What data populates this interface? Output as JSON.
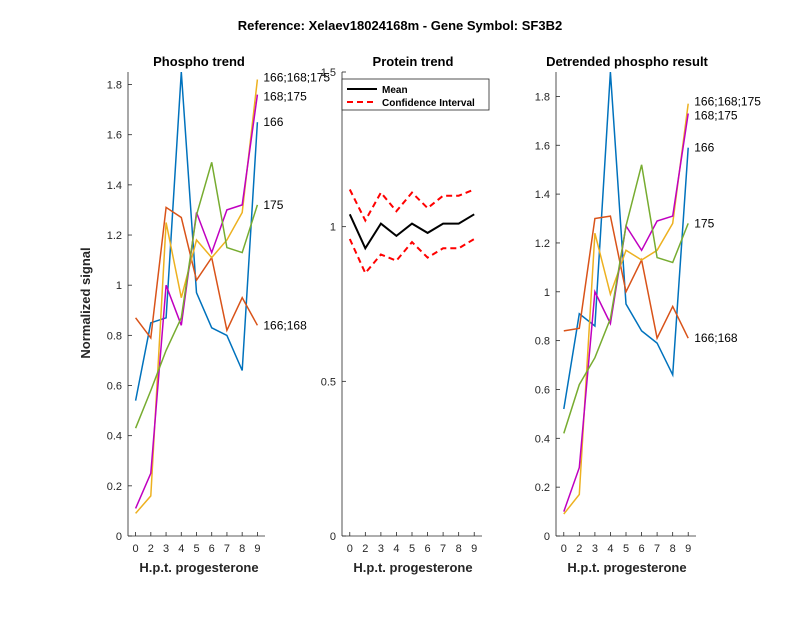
{
  "suptitle": "Reference:  Xelaev18024168m - Gene Symbol:  SF3B2",
  "colors": {
    "blue": "#0072BD",
    "orange": "#D95319",
    "yellow": "#EDB120",
    "purple": "#C000C0",
    "green": "#77AC30",
    "mean": "#000000",
    "ci": "#FF0000"
  },
  "chart_data": [
    {
      "type": "line",
      "title": "Phospho trend",
      "xlabel": "H.p.t. progesterone",
      "ylabel": "Normalized signal",
      "categories": [
        "0",
        "2",
        "3",
        "4",
        "5",
        "6",
        "7",
        "8",
        "9"
      ],
      "ylim": [
        0,
        1.85
      ],
      "yticks": [
        "0",
        "0.2",
        "0.4",
        "0.6",
        "0.8",
        "1",
        "1.2",
        "1.4",
        "1.6",
        "1.8"
      ],
      "ytick_values": [
        0,
        0.2,
        0.4,
        0.6,
        0.8,
        1,
        1.2,
        1.4,
        1.6,
        1.8
      ],
      "series": [
        {
          "name": "166",
          "color": "blue",
          "label": "166",
          "values": [
            0.54,
            0.85,
            0.87,
            1.85,
            0.97,
            0.83,
            0.8,
            0.66,
            1.65
          ]
        },
        {
          "name": "166;168",
          "color": "orange",
          "label": "166;168",
          "values": [
            0.87,
            0.79,
            1.31,
            1.27,
            1.02,
            1.11,
            0.82,
            0.95,
            0.84
          ]
        },
        {
          "name": "166;168;175",
          "color": "yellow",
          "label": "166;168;175",
          "values": [
            0.09,
            0.16,
            1.25,
            0.95,
            1.18,
            1.11,
            1.18,
            1.29,
            1.82
          ]
        },
        {
          "name": "168;175",
          "color": "purple",
          "label": "168;175",
          "values": [
            0.11,
            0.25,
            1.0,
            0.84,
            1.29,
            1.13,
            1.3,
            1.32,
            1.76
          ]
        },
        {
          "name": "175",
          "color": "green",
          "label": "175",
          "values": [
            0.43,
            0.58,
            0.74,
            0.87,
            1.28,
            1.49,
            1.15,
            1.13,
            1.32
          ]
        }
      ]
    },
    {
      "type": "line",
      "title": "Protein trend",
      "xlabel": "H.p.t. progesterone",
      "categories": [
        "0",
        "2",
        "3",
        "4",
        "5",
        "6",
        "7",
        "8",
        "9"
      ],
      "ylim": [
        0,
        1.5
      ],
      "yticks": [
        "0",
        "0.5",
        "1",
        "1.5"
      ],
      "ytick_values": [
        0,
        0.5,
        1,
        1.5
      ],
      "legend": {
        "placement": "top",
        "entries": [
          "Mean",
          "Confidence Interval"
        ]
      },
      "series": [
        {
          "name": "Mean",
          "color": "mean",
          "style": "solid",
          "values": [
            1.04,
            0.93,
            1.01,
            0.97,
            1.01,
            0.98,
            1.01,
            1.01,
            1.04
          ]
        },
        {
          "name": "Confidence Interval upper",
          "color": "ci",
          "style": "dashed",
          "values": [
            1.12,
            1.02,
            1.11,
            1.05,
            1.11,
            1.06,
            1.1,
            1.1,
            1.12
          ]
        },
        {
          "name": "Confidence Interval lower",
          "color": "ci",
          "style": "dashed",
          "values": [
            0.96,
            0.85,
            0.91,
            0.89,
            0.95,
            0.9,
            0.93,
            0.93,
            0.96
          ]
        }
      ]
    },
    {
      "type": "line",
      "title": "Detrended phospho result",
      "xlabel": "H.p.t. progesterone",
      "categories": [
        "0",
        "2",
        "3",
        "4",
        "5",
        "6",
        "7",
        "8",
        "9"
      ],
      "ylim": [
        0,
        1.9
      ],
      "yticks": [
        "0",
        "0.2",
        "0.4",
        "0.6",
        "0.8",
        "1",
        "1.2",
        "1.4",
        "1.6",
        "1.8"
      ],
      "ytick_values": [
        0,
        0.2,
        0.4,
        0.6,
        0.8,
        1,
        1.2,
        1.4,
        1.6,
        1.8
      ],
      "series": [
        {
          "name": "166",
          "color": "blue",
          "label": "166",
          "values": [
            0.52,
            0.91,
            0.86,
            1.9,
            0.95,
            0.84,
            0.79,
            0.66,
            1.59
          ]
        },
        {
          "name": "166;168",
          "color": "orange",
          "label": "166;168",
          "values": [
            0.84,
            0.85,
            1.3,
            1.31,
            1.0,
            1.13,
            0.81,
            0.94,
            0.81
          ]
        },
        {
          "name": "166;168;175",
          "color": "yellow",
          "label": "166;168;175",
          "values": [
            0.09,
            0.17,
            1.24,
            0.99,
            1.17,
            1.13,
            1.17,
            1.28,
            1.77
          ]
        },
        {
          "name": "168;175",
          "color": "purple",
          "label": "168;175",
          "values": [
            0.1,
            0.28,
            1.0,
            0.87,
            1.27,
            1.17,
            1.29,
            1.31,
            1.73
          ]
        },
        {
          "name": "175",
          "color": "green",
          "label": "175",
          "values": [
            0.42,
            0.62,
            0.73,
            0.89,
            1.27,
            1.52,
            1.14,
            1.12,
            1.28
          ]
        }
      ]
    }
  ]
}
